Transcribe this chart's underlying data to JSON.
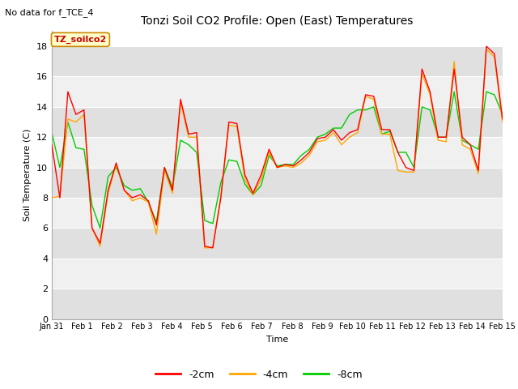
{
  "title": "Tonzi Soil CO2 Profile: Open (East) Temperatures",
  "subtitle": "No data for f_TCE_4",
  "ylabel": "Soil Temperature (C)",
  "xlabel": "Time",
  "legend_label": "TZ_soilco2",
  "ylim": [
    0,
    19
  ],
  "yticks": [
    0,
    2,
    4,
    6,
    8,
    10,
    12,
    14,
    16,
    18
  ],
  "xtick_labels": [
    "Jan 31",
    "Feb 1",
    "Feb 2",
    "Feb 3",
    "Feb 4",
    "Feb 5",
    "Feb 6",
    "Feb 7",
    "Feb 8",
    "Feb 9",
    "Feb 10",
    "Feb 11",
    "Feb 12",
    "Feb 13",
    "Feb 14",
    "Feb 15"
  ],
  "color_2cm": "#ff0000",
  "color_4cm": "#ffa500",
  "color_8cm": "#00cc00",
  "legend_entries": [
    "-2cm",
    "-4cm",
    "-8cm"
  ],
  "fig_facecolor": "#ffffff",
  "band_light": "#f0f0f0",
  "band_dark": "#e0e0e0",
  "t_2cm": [
    11.5,
    8.0,
    15.0,
    13.5,
    13.8,
    6.0,
    5.0,
    8.5,
    10.3,
    8.5,
    8.0,
    8.2,
    7.8,
    6.2,
    10.0,
    8.5,
    14.5,
    12.2,
    12.3,
    4.8,
    4.7,
    8.0,
    13.0,
    12.9,
    9.5,
    8.3,
    9.5,
    11.2,
    10.0,
    10.2,
    10.1,
    10.5,
    11.0,
    11.9,
    12.0,
    12.5,
    11.8,
    12.3,
    12.5,
    14.8,
    14.7,
    12.5,
    12.5,
    11.0,
    10.0,
    9.8,
    16.5,
    15.0,
    12.0,
    12.0,
    16.5,
    12.0,
    11.5,
    9.8,
    18.0,
    17.5,
    13.2
  ],
  "t_4cm": [
    8.0,
    8.1,
    13.2,
    13.0,
    13.5,
    6.0,
    4.8,
    8.3,
    10.2,
    8.5,
    7.8,
    8.0,
    7.7,
    5.6,
    9.8,
    8.3,
    14.3,
    12.0,
    12.0,
    4.7,
    4.7,
    8.0,
    12.8,
    12.7,
    9.2,
    8.2,
    9.2,
    11.0,
    10.0,
    10.1,
    10.0,
    10.3,
    10.8,
    11.7,
    11.8,
    12.3,
    11.5,
    12.0,
    12.3,
    14.7,
    14.5,
    12.2,
    12.2,
    9.8,
    9.7,
    9.7,
    16.2,
    14.8,
    11.8,
    11.7,
    17.0,
    11.5,
    11.2,
    9.6,
    17.8,
    17.3,
    13.0
  ],
  "t_8cm": [
    12.3,
    10.0,
    13.0,
    11.3,
    11.2,
    7.5,
    6.0,
    9.4,
    10.0,
    8.8,
    8.5,
    8.6,
    7.7,
    6.4,
    10.0,
    8.7,
    11.8,
    11.5,
    11.0,
    6.5,
    6.3,
    9.0,
    10.5,
    10.4,
    8.9,
    8.2,
    8.8,
    10.8,
    10.1,
    10.2,
    10.2,
    10.8,
    11.2,
    12.0,
    12.2,
    12.6,
    12.6,
    13.5,
    13.8,
    13.8,
    14.0,
    12.2,
    12.4,
    11.0,
    11.0,
    10.0,
    14.0,
    13.8,
    12.0,
    12.0,
    15.0,
    11.8,
    11.5,
    11.2,
    15.0,
    14.8,
    13.5
  ]
}
